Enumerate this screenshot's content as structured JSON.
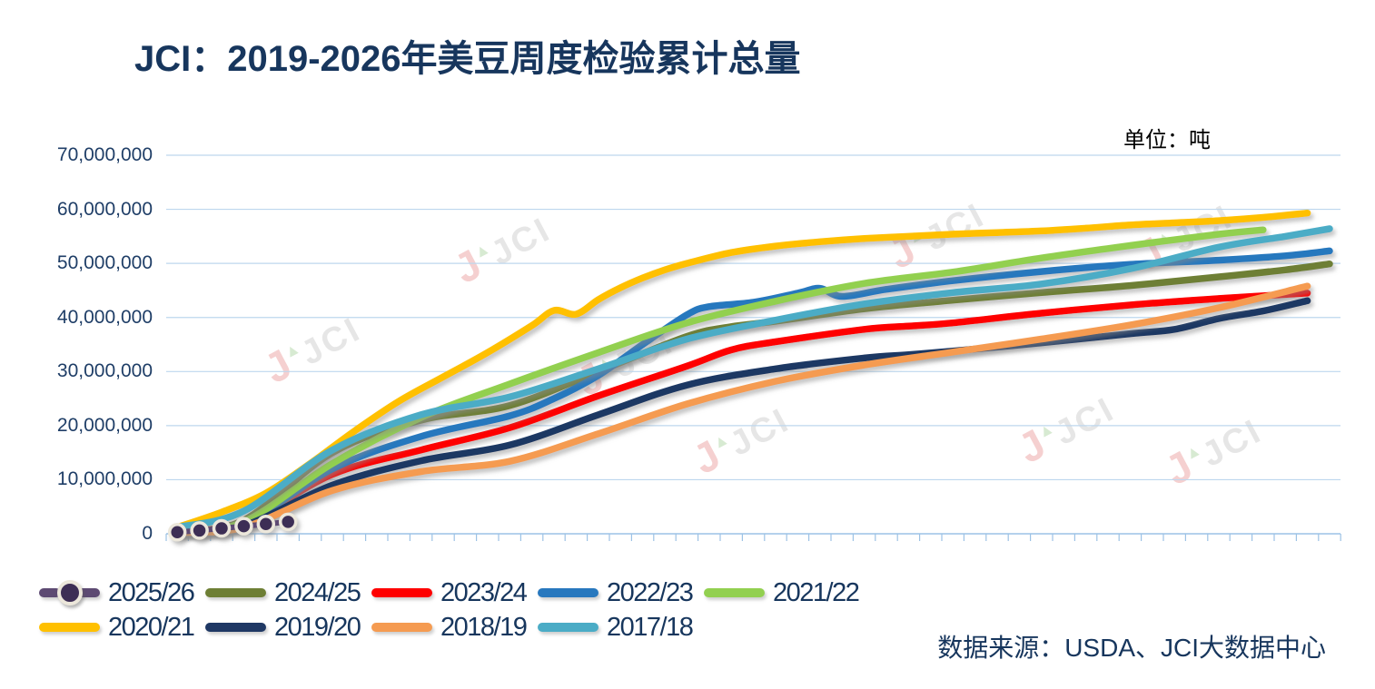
{
  "title": "JCI：2019-2026年美豆周度检验累计总量",
  "unit_label": "单位：吨",
  "source_label": "数据来源：USDA、JCI大数据中心",
  "watermark_text": "JCI",
  "colors": {
    "title_text": "#17365D",
    "axis_text": "#1F3E67",
    "gridline": "#BDD7EE",
    "axis_line": "#9CC2E5"
  },
  "legend": {
    "rows": [
      [
        "2025/26",
        "2024/25",
        "2023/24",
        "2022/23",
        "2021/22"
      ],
      [
        "2020/21",
        "2019/20",
        "2018/19",
        "2017/18"
      ]
    ]
  },
  "chart_data": {
    "type": "line",
    "title": "JCI：2019-2026年美豆周度检验累计总量",
    "xlabel": "",
    "ylabel": "吨",
    "x_axis": {
      "kind": "marketing-year week",
      "weeks": 53,
      "tick_marks_visible": true,
      "tick_labels_visible": false
    },
    "ylim": [
      0,
      70000000
    ],
    "y_tick_labels": [
      "0",
      "10,000,000",
      "20,000,000",
      "30,000,000",
      "40,000,000",
      "50,000,000",
      "60,000,000",
      "70,000,000"
    ],
    "grid": true,
    "legend_position": "bottom",
    "series": [
      {
        "name": "2025/26",
        "color": "#5D4A73",
        "marker": true,
        "marker_fill": "#3D2E55",
        "marker_ring": "#ECE7DB",
        "points": [
          [
            1,
            300000
          ],
          [
            2,
            600000
          ],
          [
            3,
            1000000
          ],
          [
            4,
            1400000
          ],
          [
            5,
            1800000
          ],
          [
            6,
            2200000
          ]
        ]
      },
      {
        "name": "2024/25",
        "color": "#6E7F35",
        "marker": false,
        "points": [
          [
            1,
            500000
          ],
          [
            4,
            2500000
          ],
          [
            8,
            15000000
          ],
          [
            12,
            21000000
          ],
          [
            16,
            23700000
          ],
          [
            20,
            30000000
          ],
          [
            24,
            36500000
          ],
          [
            26,
            38300000
          ],
          [
            28,
            39300000
          ],
          [
            32,
            41600000
          ],
          [
            36,
            43200000
          ],
          [
            40,
            44600000
          ],
          [
            44,
            45900000
          ],
          [
            48,
            47500000
          ],
          [
            51,
            48800000
          ],
          [
            53,
            49900000
          ]
        ]
      },
      {
        "name": "2023/24",
        "color": "#FE0000",
        "marker": false,
        "points": [
          [
            1,
            400000
          ],
          [
            4,
            2000000
          ],
          [
            8,
            11000000
          ],
          [
            12,
            15500000
          ],
          [
            16,
            19600000
          ],
          [
            20,
            25500000
          ],
          [
            24,
            31000000
          ],
          [
            26,
            34000000
          ],
          [
            28,
            35500000
          ],
          [
            32,
            37800000
          ],
          [
            34,
            38400000
          ],
          [
            36,
            39000000
          ],
          [
            40,
            40800000
          ],
          [
            44,
            42300000
          ],
          [
            48,
            43500000
          ],
          [
            52,
            44500000
          ]
        ]
      },
      {
        "name": "2022/23",
        "color": "#2878BE",
        "marker": false,
        "points": [
          [
            1,
            300000
          ],
          [
            4,
            1800000
          ],
          [
            8,
            12000000
          ],
          [
            12,
            18000000
          ],
          [
            16,
            21800000
          ],
          [
            18,
            25000000
          ],
          [
            20,
            29300000
          ],
          [
            22,
            35000000
          ],
          [
            24,
            40500000
          ],
          [
            25,
            42000000
          ],
          [
            27,
            42800000
          ],
          [
            29,
            44500000
          ],
          [
            30,
            45400000
          ],
          [
            31,
            43900000
          ],
          [
            33,
            45200000
          ],
          [
            36,
            46800000
          ],
          [
            40,
            48500000
          ],
          [
            44,
            49800000
          ],
          [
            48,
            50600000
          ],
          [
            51,
            51400000
          ],
          [
            53,
            52300000
          ]
        ]
      },
      {
        "name": "2021/22",
        "color": "#92D050",
        "marker": false,
        "points": [
          [
            1,
            300000
          ],
          [
            4,
            2200000
          ],
          [
            8,
            13000000
          ],
          [
            12,
            21500000
          ],
          [
            16,
            27700000
          ],
          [
            20,
            33500000
          ],
          [
            24,
            39000000
          ],
          [
            28,
            43000000
          ],
          [
            32,
            46300000
          ],
          [
            36,
            48400000
          ],
          [
            40,
            51000000
          ],
          [
            44,
            53300000
          ],
          [
            48,
            55400000
          ],
          [
            50,
            56200000
          ]
        ]
      },
      {
        "name": "2020/21",
        "color": "#FFC000",
        "marker": false,
        "points": [
          [
            1,
            1200000
          ],
          [
            3,
            4000000
          ],
          [
            5,
            7500000
          ],
          [
            7,
            13000000
          ],
          [
            9,
            19000000
          ],
          [
            11,
            24500000
          ],
          [
            13,
            29000000
          ],
          [
            15,
            33500000
          ],
          [
            17,
            38500000
          ],
          [
            18,
            41300000
          ],
          [
            19,
            40600000
          ],
          [
            20,
            43300000
          ],
          [
            21,
            45500000
          ],
          [
            22,
            47300000
          ],
          [
            23,
            48800000
          ],
          [
            24,
            50000000
          ],
          [
            26,
            52000000
          ],
          [
            28,
            53200000
          ],
          [
            30,
            54000000
          ],
          [
            32,
            54600000
          ],
          [
            34,
            55000000
          ],
          [
            36,
            55400000
          ],
          [
            38,
            55700000
          ],
          [
            40,
            56000000
          ],
          [
            42,
            56500000
          ],
          [
            44,
            57100000
          ],
          [
            46,
            57500000
          ],
          [
            48,
            57900000
          ],
          [
            50,
            58500000
          ],
          [
            52,
            59300000
          ]
        ]
      },
      {
        "name": "2019/20",
        "color": "#1F3864",
        "marker": false,
        "points": [
          [
            1,
            300000
          ],
          [
            4,
            1500000
          ],
          [
            8,
            9000000
          ],
          [
            12,
            13500000
          ],
          [
            16,
            16400000
          ],
          [
            20,
            22000000
          ],
          [
            24,
            27500000
          ],
          [
            28,
            30500000
          ],
          [
            32,
            32500000
          ],
          [
            34,
            33100000
          ],
          [
            36,
            33800000
          ],
          [
            40,
            35300000
          ],
          [
            44,
            37000000
          ],
          [
            46,
            37800000
          ],
          [
            48,
            39800000
          ],
          [
            50,
            41200000
          ],
          [
            52,
            43100000
          ]
        ]
      },
      {
        "name": "2018/19",
        "color": "#F59B51",
        "marker": false,
        "points": [
          [
            1,
            200000
          ],
          [
            4,
            1200000
          ],
          [
            8,
            8000000
          ],
          [
            12,
            11500000
          ],
          [
            16,
            13400000
          ],
          [
            20,
            18500000
          ],
          [
            24,
            24000000
          ],
          [
            28,
            28200000
          ],
          [
            32,
            31200000
          ],
          [
            36,
            33600000
          ],
          [
            40,
            36000000
          ],
          [
            44,
            38600000
          ],
          [
            48,
            41800000
          ],
          [
            52,
            45800000
          ]
        ]
      },
      {
        "name": "2017/18",
        "color": "#4BACC6",
        "marker": false,
        "points": [
          [
            1,
            1200000
          ],
          [
            4,
            4200000
          ],
          [
            8,
            15500000
          ],
          [
            12,
            22000000
          ],
          [
            16,
            25300000
          ],
          [
            20,
            30500000
          ],
          [
            24,
            36000000
          ],
          [
            28,
            39500000
          ],
          [
            32,
            42500000
          ],
          [
            36,
            44600000
          ],
          [
            40,
            46200000
          ],
          [
            44,
            49000000
          ],
          [
            48,
            53000000
          ],
          [
            51,
            55000000
          ],
          [
            53,
            56400000
          ]
        ]
      }
    ]
  }
}
